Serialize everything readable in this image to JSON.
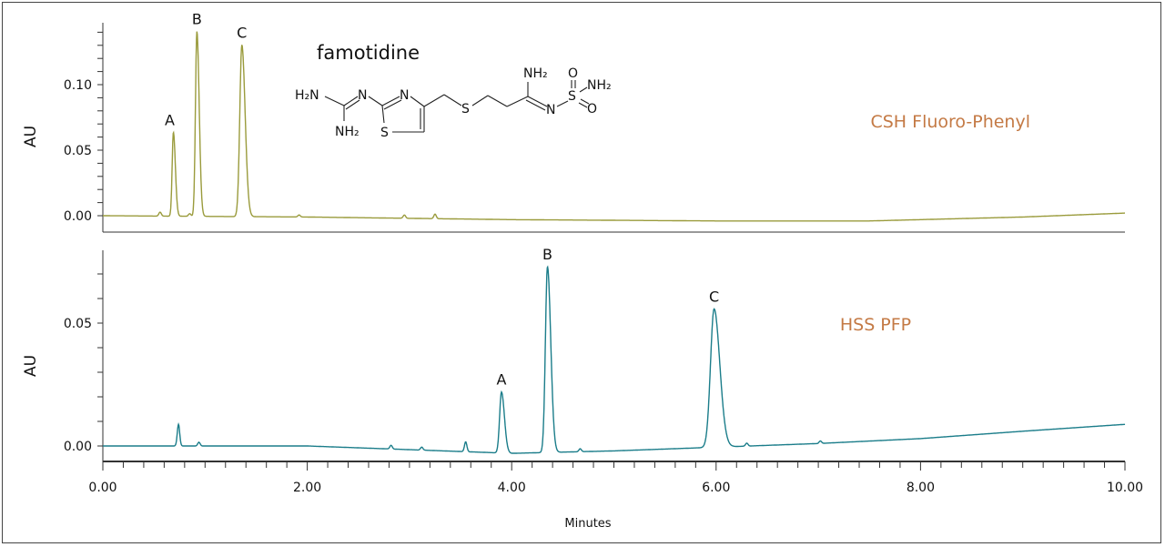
{
  "chart_data": [
    {
      "type": "line",
      "ylabel": "AU",
      "xlim": [
        0,
        10
      ],
      "ylim": [
        -0.012,
        0.145
      ],
      "yticks": [
        "0.00",
        "0.05",
        "0.10"
      ],
      "ytick_values": [
        0,
        0.05,
        0.1
      ],
      "annotation": "CSH Fluoro-Phenyl",
      "compound": "famotidine",
      "color": "#9a9b3c",
      "annotation_color": "#c47a45",
      "peaks": [
        {
          "label": "A",
          "time": 0.69,
          "height": 0.064,
          "width": 0.012
        },
        {
          "label": "B",
          "time": 0.92,
          "height": 0.141,
          "width": 0.014
        },
        {
          "label": "C",
          "time": 1.36,
          "height": 0.131,
          "width": 0.02
        }
      ],
      "minor_peaks": [
        [
          0.56,
          0.003
        ],
        [
          0.85,
          0.002
        ],
        [
          1.92,
          0.0015
        ],
        [
          2.95,
          0.0025
        ],
        [
          3.25,
          0.0035
        ]
      ],
      "baseline": [
        [
          0,
          0.0
        ],
        [
          2,
          -0.001
        ],
        [
          4,
          -0.003
        ],
        [
          6,
          -0.004
        ],
        [
          7.5,
          -0.004
        ],
        [
          9,
          -0.001
        ],
        [
          10,
          0.002
        ]
      ]
    },
    {
      "type": "line",
      "xlabel": "Minutes",
      "ylabel": "AU",
      "xlim": [
        0,
        10
      ],
      "ylim": [
        -0.006,
        0.08
      ],
      "xticks": [
        "0.00",
        "2.00",
        "4.00",
        "6.00",
        "8.00",
        "10.00"
      ],
      "xtick_values": [
        0,
        2,
        4,
        6,
        8,
        10
      ],
      "yticks": [
        "0.00",
        "0.05"
      ],
      "ytick_values": [
        0,
        0.05
      ],
      "annotation": "HSS PFP",
      "color": "#1b7d8a",
      "annotation_color": "#c47a45",
      "peaks": [
        {
          "label": "A",
          "time": 3.9,
          "height": 0.0248,
          "width": 0.018
        },
        {
          "label": "B",
          "time": 4.35,
          "height": 0.0756,
          "width": 0.02
        },
        {
          "label": "C",
          "time": 5.98,
          "height": 0.0563,
          "width": 0.035
        }
      ],
      "minor_peaks": [
        [
          0.74,
          0.0088
        ],
        [
          0.94,
          0.0015
        ],
        [
          2.82,
          0.0015
        ],
        [
          3.12,
          0.0012
        ],
        [
          3.55,
          0.004
        ],
        [
          4.67,
          0.0012
        ],
        [
          6.3,
          0.0012
        ],
        [
          7.02,
          0.001
        ]
      ],
      "baseline": [
        [
          0,
          0.0
        ],
        [
          2,
          0.0
        ],
        [
          3,
          -0.0015
        ],
        [
          4,
          -0.003
        ],
        [
          5,
          -0.002
        ],
        [
          6,
          -0.0005
        ],
        [
          7,
          0.001
        ],
        [
          8,
          0.003
        ],
        [
          9,
          0.006
        ],
        [
          10,
          0.0088
        ]
      ]
    }
  ],
  "structure_labels": {
    "h2n_left": "H₂N",
    "n_imine": "N",
    "nh2_bottom": "NH₂",
    "n_ring": "N",
    "s_ring": "S",
    "s_thioether": "S",
    "nh2_amidine": "NH₂",
    "n_sulfonyl": "N",
    "s_sulfonyl": "S",
    "o_top": "O",
    "o_right": "O",
    "nh2_sulfonyl": "NH₂"
  }
}
